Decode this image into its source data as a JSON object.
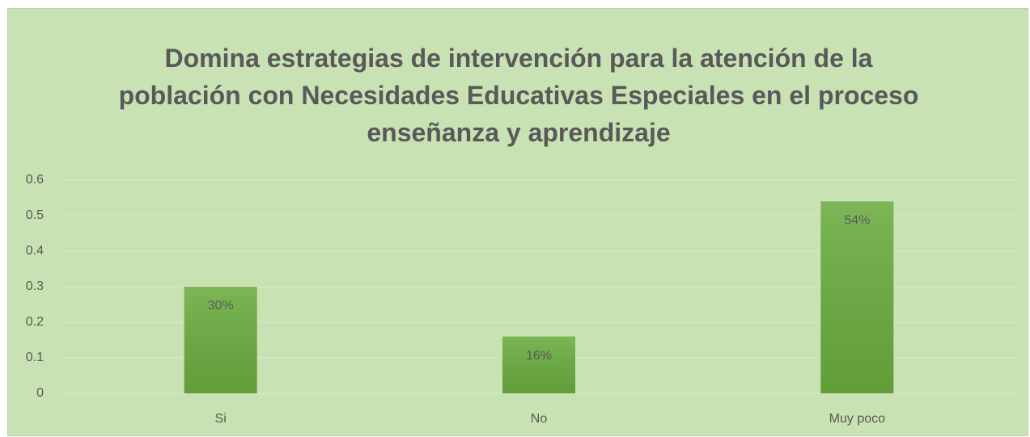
{
  "chart_data": {
    "type": "bar",
    "title": "Domina estrategias de intervención para la atención de la población con Necesidades Educativas Especiales en el proceso enseñanza y aprendizaje",
    "categories": [
      "Si",
      "No",
      "Muy poco"
    ],
    "values": [
      0.3,
      0.16,
      0.54
    ],
    "value_labels": [
      "30%",
      "16%",
      "54%"
    ],
    "color": "#6aac3f",
    "ylim": [
      0,
      0.6
    ],
    "yticks": [
      0,
      0.1,
      0.2,
      0.3,
      0.4,
      0.5,
      0.6
    ],
    "grid": true
  }
}
